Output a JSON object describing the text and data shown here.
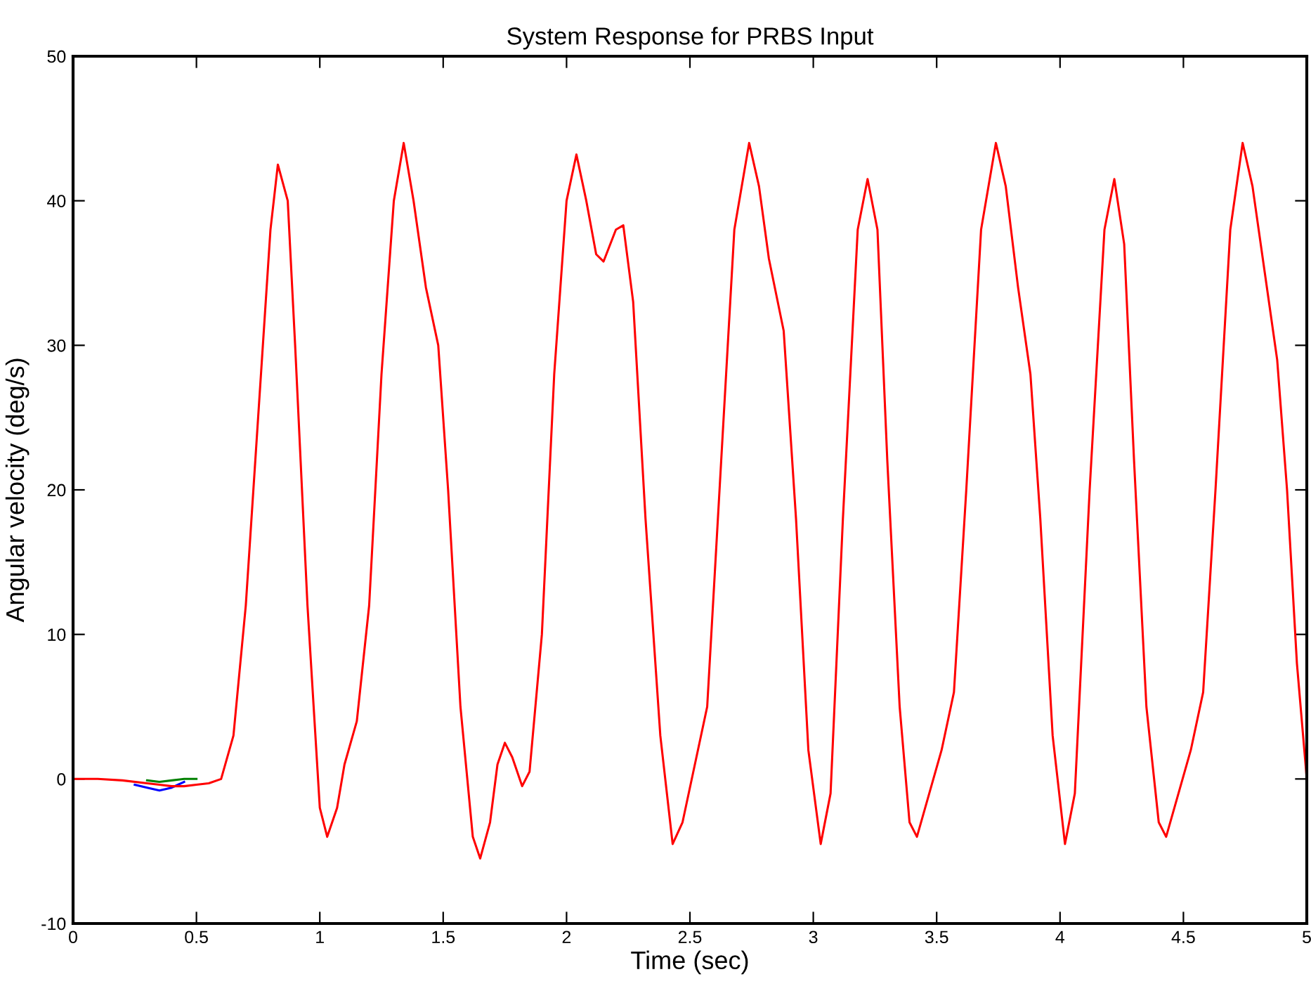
{
  "chart_data": {
    "type": "line",
    "title": "System Response for PRBS Input",
    "xlabel": "Time (sec)",
    "ylabel": "Angular velocity (deg/s)",
    "x": [
      0,
      0.1,
      0.2,
      0.3,
      0.35,
      0.4,
      0.45,
      0.5,
      0.55,
      0.6,
      0.65,
      0.7,
      0.75,
      0.8,
      0.83,
      0.87,
      0.9,
      0.95,
      1.0,
      1.03,
      1.07,
      1.1,
      1.15,
      1.2,
      1.25,
      1.3,
      1.34,
      1.38,
      1.43,
      1.48,
      1.52,
      1.57,
      1.62,
      1.65,
      1.69,
      1.72,
      1.75,
      1.78,
      1.82,
      1.85,
      1.9,
      1.95,
      2.0,
      2.04,
      2.08,
      2.12,
      2.15,
      2.2,
      2.23,
      2.27,
      2.32,
      2.38,
      2.43,
      2.47,
      2.52,
      2.57,
      2.62,
      2.68,
      2.74,
      2.78,
      2.82,
      2.88,
      2.93,
      2.98,
      3.03,
      3.07,
      3.12,
      3.18,
      3.22,
      3.26,
      3.3,
      3.35,
      3.39,
      3.42,
      3.47,
      3.52,
      3.57,
      3.62,
      3.68,
      3.74,
      3.78,
      3.83,
      3.88,
      3.92,
      3.97,
      4.02,
      4.06,
      4.12,
      4.18,
      4.22,
      4.26,
      4.3,
      4.35,
      4.4,
      4.43,
      4.48,
      4.53,
      4.58,
      4.63,
      4.69,
      4.74,
      4.78,
      4.83,
      4.88,
      4.92,
      4.96,
      5.0
    ],
    "series": [
      {
        "color": "#0000ff",
        "x": [
          0.25,
          0.3,
          0.35,
          0.4,
          0.45
        ],
        "values": [
          -0.4,
          -0.6,
          -0.8,
          -0.6,
          -0.2
        ]
      },
      {
        "color": "#008000",
        "x": [
          0.3,
          0.35,
          0.4,
          0.45,
          0.5
        ],
        "values": [
          -0.1,
          -0.2,
          -0.1,
          0,
          0
        ]
      },
      {
        "color": "#ff0000",
        "values": [
          0,
          0,
          -0.1,
          -0.3,
          -0.4,
          -0.5,
          -0.5,
          -0.4,
          -0.3,
          0,
          3,
          12,
          25,
          38,
          42.5,
          40,
          30,
          12,
          -2,
          -4,
          -2,
          1,
          4,
          12,
          28,
          40,
          44,
          40,
          34,
          30,
          20,
          5,
          -4,
          -5.5,
          -3,
          1,
          2.5,
          1.5,
          -0.5,
          0.5,
          10,
          28,
          40,
          43.2,
          40,
          36.3,
          35.8,
          38,
          38.3,
          33,
          18,
          3,
          -4.5,
          -3,
          1,
          5,
          20,
          38,
          44,
          41,
          36,
          31,
          18,
          2,
          -4.5,
          -1,
          18,
          38,
          41.5,
          38,
          22,
          5,
          -3,
          -4,
          -1,
          2,
          6,
          20,
          38,
          44,
          41,
          34,
          28,
          18,
          3,
          -4.5,
          -1,
          20,
          38,
          41.5,
          37,
          22,
          5,
          -3,
          -4,
          -1,
          2,
          6,
          20,
          38,
          44,
          41,
          35,
          29,
          20,
          8,
          0
        ]
      }
    ],
    "xlim": [
      0,
      5
    ],
    "ylim": [
      -10,
      50
    ],
    "xticks": [
      0,
      0.5,
      1,
      1.5,
      2,
      2.5,
      3,
      3.5,
      4,
      4.5,
      5
    ],
    "yticks": [
      -10,
      0,
      10,
      20,
      30,
      40,
      50
    ],
    "grid": false,
    "legend": false
  }
}
